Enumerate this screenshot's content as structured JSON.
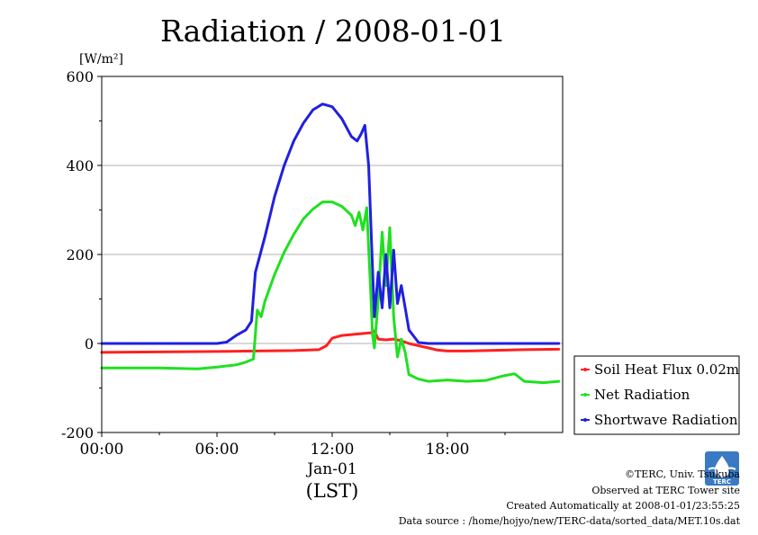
{
  "chart_data": {
    "type": "line",
    "title": "Radiation / 2008-01-01",
    "ylabel": "[W/m²]",
    "ylim": [
      -200,
      600
    ],
    "yticks": [
      -200,
      0,
      200,
      400,
      600
    ],
    "xlim": [
      0,
      24
    ],
    "xticks": [
      {
        "x": 0,
        "label": "00:00"
      },
      {
        "x": 6,
        "label": "06:00"
      },
      {
        "x": 12,
        "label": "12:00"
      },
      {
        "x": 18,
        "label": "18:00"
      }
    ],
    "date_label": "Jan-01",
    "xlabel": "(LST)",
    "grid": true,
    "legend_position": "right",
    "series": [
      {
        "name": "Soil Heat Flux 0.02m",
        "color": "#ff2020",
        "x": [
          0,
          3,
          6,
          8,
          10,
          11.3,
          11.7,
          12,
          12.5,
          13,
          13.5,
          14,
          14.2,
          14.4,
          14.8,
          15.2,
          15.6,
          16,
          16.5,
          17,
          17.5,
          18,
          19,
          20,
          22,
          23.8
        ],
        "y": [
          -20,
          -19,
          -18,
          -17,
          -16,
          -14,
          -5,
          12,
          18,
          20,
          22,
          24,
          28,
          10,
          8,
          10,
          6,
          0,
          -5,
          -10,
          -15,
          -17,
          -17,
          -16,
          -14,
          -13
        ]
      },
      {
        "name": "Net Radiation",
        "color": "#20e020",
        "x": [
          0,
          3,
          5,
          6,
          7,
          7.5,
          7.9,
          8.1,
          8.3,
          8.5,
          9,
          9.5,
          10,
          10.5,
          11,
          11.5,
          12,
          12.5,
          13,
          13.2,
          13.4,
          13.6,
          13.8,
          14,
          14.1,
          14.2,
          14.4,
          14.6,
          14.8,
          15,
          15.2,
          15.4,
          15.6,
          15.8,
          16,
          16.5,
          17,
          18,
          19,
          20,
          21,
          21.5,
          22,
          23,
          23.8
        ],
        "y": [
          -55,
          -55,
          -57,
          -53,
          -48,
          -42,
          -35,
          75,
          60,
          95,
          155,
          205,
          245,
          280,
          302,
          318,
          318,
          308,
          288,
          265,
          295,
          255,
          305,
          120,
          20,
          -10,
          100,
          250,
          130,
          260,
          60,
          -30,
          10,
          -20,
          -70,
          -80,
          -85,
          -82,
          -85,
          -83,
          -72,
          -68,
          -85,
          -88,
          -85
        ]
      },
      {
        "name": "Shortwave Radiation",
        "color": "#2020e0",
        "x": [
          0,
          3,
          6,
          6.5,
          7,
          7.5,
          7.8,
          8,
          8.5,
          9,
          9.5,
          10,
          10.5,
          11,
          11.5,
          12,
          12.5,
          13,
          13.3,
          13.5,
          13.7,
          13.9,
          14.1,
          14.2,
          14.4,
          14.6,
          14.8,
          15,
          15.2,
          15.4,
          15.6,
          15.8,
          16,
          16.5,
          17,
          18,
          20,
          22,
          23.8
        ],
        "y": [
          0,
          0,
          0,
          3,
          18,
          30,
          50,
          160,
          240,
          330,
          400,
          455,
          495,
          525,
          538,
          532,
          505,
          465,
          455,
          470,
          490,
          400,
          170,
          60,
          160,
          80,
          200,
          80,
          210,
          90,
          130,
          80,
          30,
          2,
          0,
          0,
          0,
          0,
          0
        ]
      }
    ]
  },
  "credits": {
    "copyright": "©TERC, Univ. Tsukuba",
    "site": "Observed at TERC Tower site",
    "created": "Created Automatically at 2008-01-01/23:55:25",
    "source": "Data source : /home/hojyo/new/TERC-data/sorted_data/MET.10s.dat",
    "logo_text": "TERC"
  }
}
